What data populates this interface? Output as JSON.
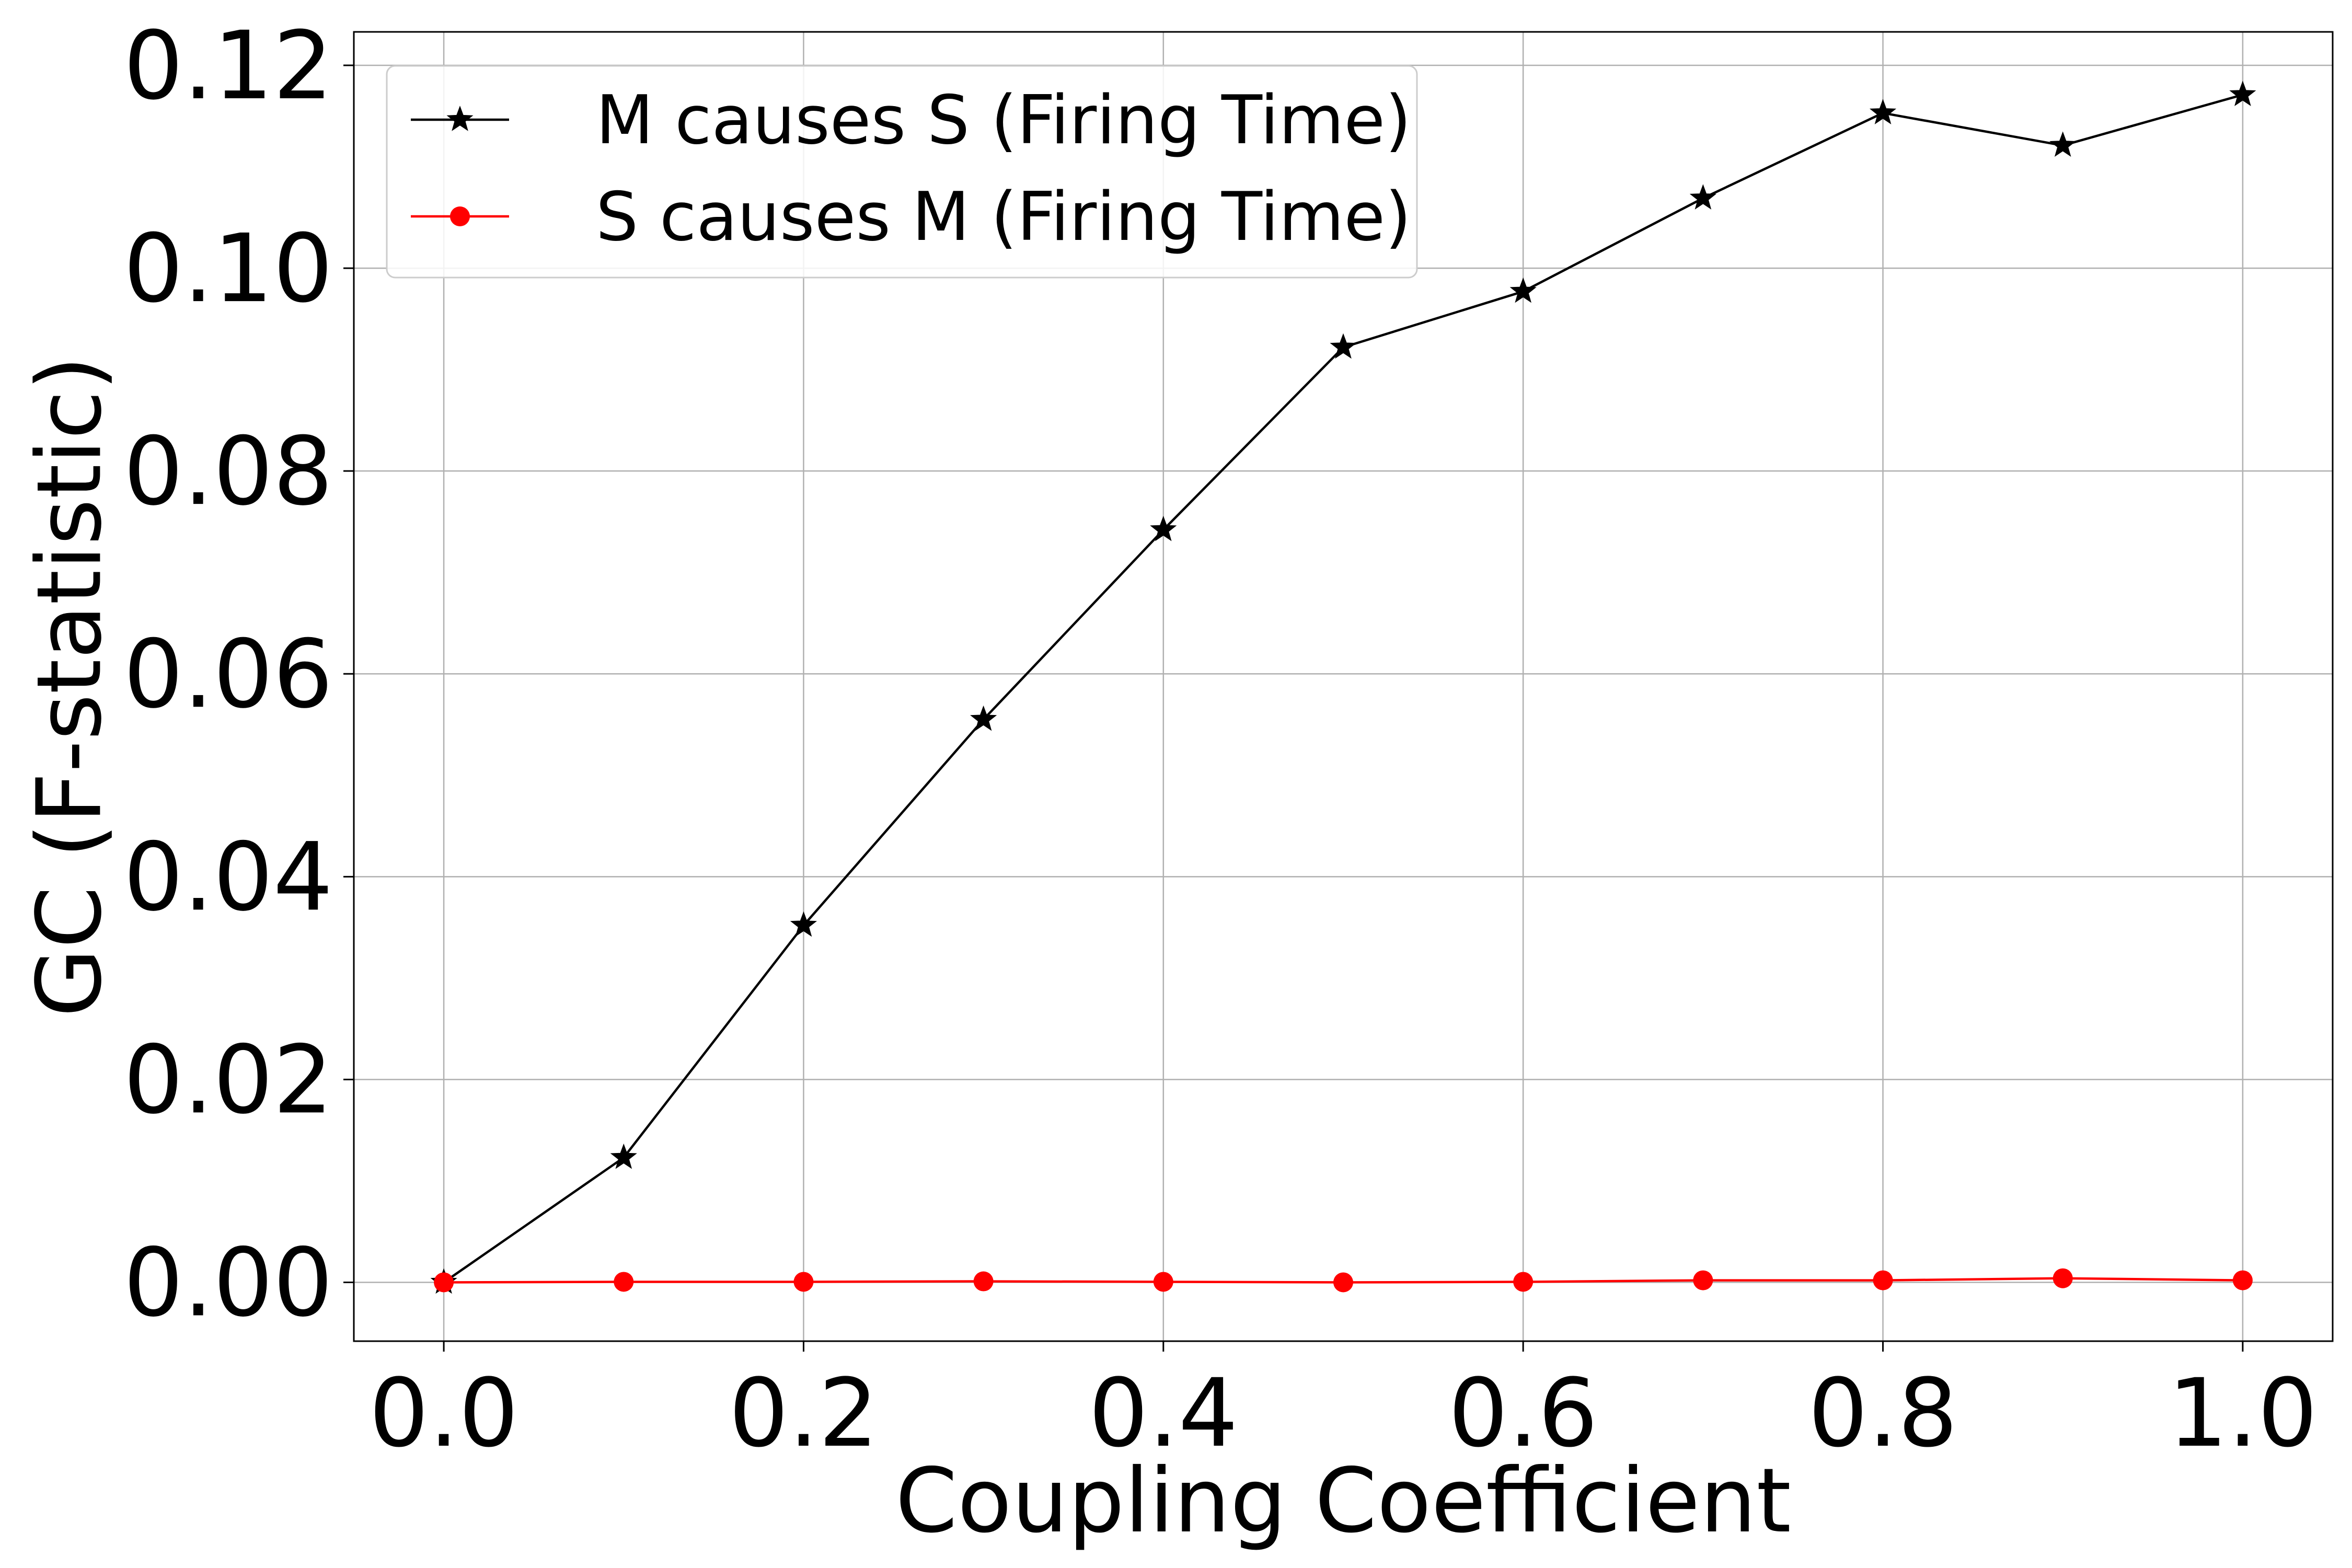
{
  "chart_data": {
    "type": "line",
    "title": "",
    "xlabel": "Coupling Coefficient",
    "ylabel": "GC (F-statistic)",
    "xlim": [
      -0.05,
      1.05
    ],
    "ylim": [
      -0.0058,
      0.1233
    ],
    "xticks": [
      0.0,
      0.2,
      0.4,
      0.6,
      0.8,
      1.0
    ],
    "xtick_labels": [
      "0.0",
      "0.2",
      "0.4",
      "0.6",
      "0.8",
      "1.0"
    ],
    "yticks": [
      0.0,
      0.02,
      0.04,
      0.06,
      0.08,
      0.1,
      0.12
    ],
    "ytick_labels": [
      "0.00",
      "0.02",
      "0.04",
      "0.06",
      "0.08",
      "0.10",
      "0.12"
    ],
    "grid": true,
    "legend_position": "top-left",
    "x": [
      0.0,
      0.1,
      0.2,
      0.3,
      0.4,
      0.5,
      0.6,
      0.7,
      0.8,
      0.9,
      1.0
    ],
    "series": [
      {
        "name": "M causes S (Firing Time)",
        "color": "#000000",
        "marker": "star",
        "values": [
          0.0,
          0.0123,
          0.0352,
          0.0555,
          0.0742,
          0.0922,
          0.0977,
          0.1069,
          0.1153,
          0.1121,
          0.1171
        ]
      },
      {
        "name": "S causes M (Firing Time)",
        "color": "#ff0000",
        "marker": "circle",
        "values": [
          0.0,
          5e-05,
          5e-05,
          0.0001,
          5e-05,
          0.0,
          5e-05,
          0.0002,
          0.0002,
          0.0004,
          0.0002
        ]
      }
    ]
  }
}
